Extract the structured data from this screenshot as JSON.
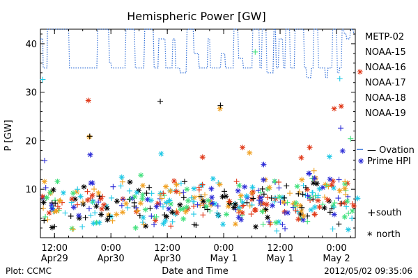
{
  "chart_data": {
    "type": "scatter",
    "title": "Hemispheric Power [GW]",
    "ylabel": "P [GW]",
    "xlabel": "Date and Time",
    "ylim": [
      0,
      43
    ],
    "xlim": [
      0,
      67
    ],
    "x_units": "hours since Apr29 00:00 (axis starts near 09:00)",
    "x_ticks": [
      {
        "x": 3,
        "top": "12:00",
        "bottom": "Apr29"
      },
      {
        "x": 15,
        "top": "0:00",
        "bottom": "Apr30"
      },
      {
        "x": 27,
        "top": "12:00",
        "bottom": "Apr30"
      },
      {
        "x": 39,
        "top": "0:00",
        "bottom": "May 1"
      },
      {
        "x": 51,
        "top": "12:00",
        "bottom": "May 1"
      },
      {
        "x": 63,
        "top": "0:00",
        "bottom": "May 2"
      }
    ],
    "y_ticks": [
      10,
      20,
      30,
      40
    ],
    "footer_left": "Plot: CCMC",
    "footer_right": "2012/05/02 09:35:06",
    "legend": {
      "satellites": [
        {
          "name": "METP-02",
          "color": "#000000"
        },
        {
          "name": "NOAA-15",
          "color": "#2a2ad6"
        },
        {
          "name": "NOAA-16",
          "color": "#1ec8e6"
        },
        {
          "name": "NOAA-17",
          "color": "#3ee07a"
        },
        {
          "name": "NOAA-18",
          "color": "#f0a020"
        },
        {
          "name": "NOAA-19",
          "color": "#e03818"
        }
      ],
      "ovation_line1": "— Ovation",
      "ovation_line2": "Prime HPI",
      "ovation_color": "#2a6ad6",
      "south_symbol": "+",
      "south_label": "south",
      "north_symbol": "*",
      "north_label": "north"
    },
    "ovation_series": {
      "name": "Ovation Prime HPI",
      "x": [
        0,
        0.5,
        0.6,
        1.4,
        1.5,
        6.0,
        6.2,
        12.0,
        12.2,
        14.5,
        14.7,
        15.0,
        15.2,
        18.0,
        18.2,
        20.0,
        20.2,
        22.0,
        22.2,
        24.0,
        24.2,
        25.0,
        25.2,
        26.5,
        26.7,
        28.0,
        28.2,
        28.6,
        28.8,
        29.6,
        29.8,
        31.0,
        31.2,
        32.5,
        32.7,
        33.6,
        33.8,
        34.8,
        35.0,
        35.5,
        35.7,
        36.0,
        36.2,
        38.3,
        38.5,
        39.2,
        39.4,
        41.0,
        41.2,
        42.0,
        42.2,
        43.0,
        43.2,
        45.0,
        45.2,
        46.5,
        46.7,
        47.0,
        47.2,
        48.0,
        48.2,
        49.5,
        49.7,
        50.0,
        50.2,
        50.6,
        50.8,
        51.5,
        51.7,
        52.0,
        52.2,
        53.0,
        53.2,
        54.0,
        54.2,
        56.0,
        56.2,
        56.5,
        56.7,
        57.5,
        57.7,
        58.0,
        58.2,
        59.0,
        59.2,
        60.5,
        60.7,
        61.0,
        61.2,
        62.0,
        62.2,
        63.0,
        63.2,
        63.5,
        63.7,
        64.0,
        64.2,
        64.5,
        64.7,
        65.0,
        65.2,
        65.8,
        66.0,
        66.5,
        66.7,
        67.0
      ],
      "y": [
        41,
        41,
        35,
        35,
        43,
        43,
        35,
        35,
        43,
        43,
        36,
        36,
        35,
        35,
        43,
        43,
        35,
        35,
        43,
        43,
        35,
        35,
        41,
        41,
        35,
        35,
        41,
        41,
        35,
        35,
        34,
        34,
        43,
        43,
        38,
        38,
        35,
        35,
        35,
        35,
        41,
        41,
        35,
        35,
        38,
        38,
        35,
        35,
        43,
        43,
        37,
        37,
        35,
        35,
        43,
        43,
        35,
        35,
        43,
        43,
        34,
        34,
        43,
        43,
        35,
        35,
        41,
        41,
        35,
        35,
        43,
        43,
        35,
        35,
        43,
        43,
        35,
        35,
        33,
        33,
        35,
        35,
        43,
        43,
        35,
        35,
        33,
        33,
        35,
        35,
        43,
        43,
        34,
        34,
        35,
        35,
        43,
        43,
        42,
        42,
        41,
        41,
        43,
        43,
        42,
        42
      ]
    },
    "outliers": [
      {
        "x": 10.2,
        "y": 28.3,
        "series": "NOAA-19",
        "hemisphere": "north"
      },
      {
        "x": 10.4,
        "y": 20.8,
        "series": "NOAA-18",
        "hemisphere": "north"
      },
      {
        "x": 10.5,
        "y": 20.9,
        "series": "METP-02",
        "hemisphere": "south"
      },
      {
        "x": 10.6,
        "y": 17.1,
        "series": "NOAA-15",
        "hemisphere": "north"
      },
      {
        "x": 25.5,
        "y": 28.1,
        "series": "METP-02",
        "hemisphere": "south"
      },
      {
        "x": 25.7,
        "y": 17.3,
        "series": "NOAA-16",
        "hemisphere": "north"
      },
      {
        "x": 38.2,
        "y": 26.6,
        "series": "NOAA-18",
        "hemisphere": "north"
      },
      {
        "x": 38.3,
        "y": 27.3,
        "series": "METP-02",
        "hemisphere": "south"
      },
      {
        "x": 34.5,
        "y": 16.6,
        "series": "NOAA-19",
        "hemisphere": "north"
      },
      {
        "x": 43.0,
        "y": 18.6,
        "series": "NOAA-19",
        "hemisphere": "north"
      },
      {
        "x": 44.5,
        "y": 17.5,
        "series": "NOAA-18",
        "hemisphere": "north"
      },
      {
        "x": 47.5,
        "y": 15.1,
        "series": "NOAA-15",
        "hemisphere": "north"
      },
      {
        "x": 45.7,
        "y": 38.3,
        "series": "NOAA-17",
        "hemisphere": "south"
      },
      {
        "x": 55.5,
        "y": 16.5,
        "series": "NOAA-19",
        "hemisphere": "north"
      },
      {
        "x": 57.3,
        "y": 18.6,
        "series": "NOAA-19",
        "hemisphere": "north"
      },
      {
        "x": 61.5,
        "y": 16.7,
        "series": "NOAA-16",
        "hemisphere": "north"
      },
      {
        "x": 62.5,
        "y": 26.6,
        "series": "NOAA-19",
        "hemisphere": "north"
      },
      {
        "x": 64.0,
        "y": 27.1,
        "series": "NOAA-19",
        "hemisphere": "north"
      },
      {
        "x": 63.7,
        "y": 32.8,
        "series": "NOAA-16",
        "hemisphere": "south"
      },
      {
        "x": 63.9,
        "y": 22.6,
        "series": "NOAA-15",
        "hemisphere": "south"
      },
      {
        "x": 64.3,
        "y": 17.9,
        "series": "NOAA-15",
        "hemisphere": "north"
      },
      {
        "x": 66.0,
        "y": 20.4,
        "series": "NOAA-17",
        "hemisphere": "south"
      },
      {
        "x": 68.0,
        "y": 34.2,
        "series": "NOAA-19",
        "hemisphere": "north"
      },
      {
        "x": 68.2,
        "y": 15.8,
        "series": "NOAA-15",
        "hemisphere": "north"
      },
      {
        "x": 0.5,
        "y": 32.6,
        "series": "NOAA-16",
        "hemisphere": "south"
      },
      {
        "x": 0.9,
        "y": 15.9,
        "series": "NOAA-15",
        "hemisphere": "south"
      }
    ],
    "bulk_scatter": {
      "note": "dense cluster of points 1–14 GW across all satellites",
      "y_range": [
        1,
        14
      ],
      "count": 420
    }
  }
}
